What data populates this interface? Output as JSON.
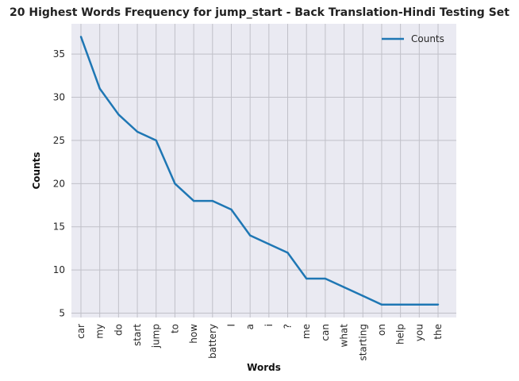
{
  "chart_data": {
    "type": "line",
    "title": "20 Highest Words Frequency for jump_start - Back Translation-Hindi Testing Set",
    "xlabel": "Words",
    "ylabel": "Counts",
    "categories": [
      "car",
      "my",
      "do",
      "start",
      "jump",
      "to",
      "how",
      "battery",
      "I",
      "a",
      "i",
      "?",
      "me",
      "can",
      "what",
      "starting",
      "on",
      "help",
      "you",
      "the"
    ],
    "series": [
      {
        "name": "Counts",
        "values": [
          37,
          31,
          28,
          26,
          25,
          20,
          18,
          18,
          17,
          14,
          13,
          12,
          9,
          9,
          8,
          7,
          6,
          6,
          6,
          6
        ]
      }
    ],
    "ylim": [
      4.5,
      38.5
    ],
    "yticks": [
      5,
      10,
      15,
      20,
      25,
      30,
      35
    ],
    "grid": true,
    "legend_position": "top-right",
    "colors": {
      "line": "#1f77b4",
      "plot_bg": "#eaeaf2",
      "grid": "#c0c0c8"
    }
  }
}
